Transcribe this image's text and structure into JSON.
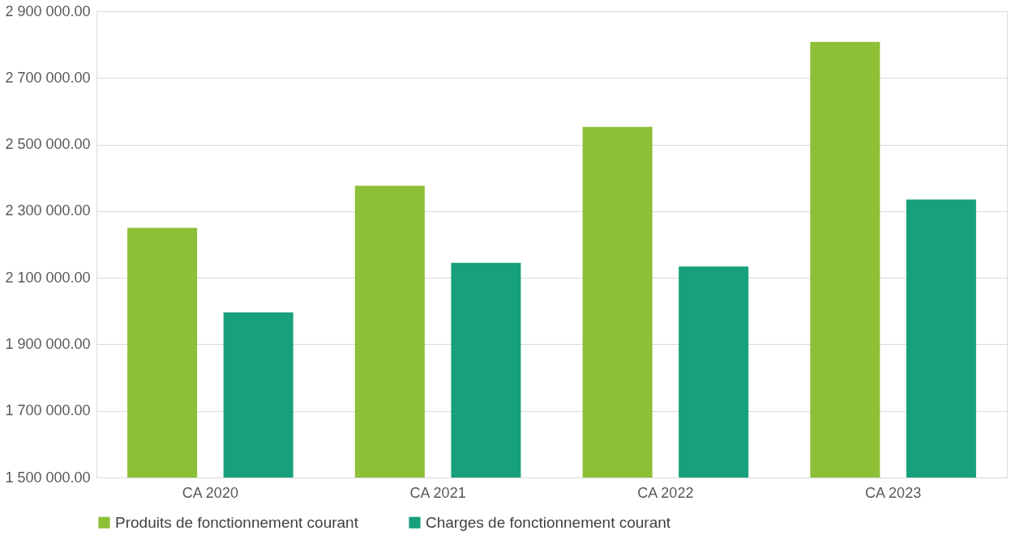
{
  "chart_data": {
    "type": "bar",
    "categories": [
      "CA 2020",
      "CA 2021",
      "CA 2022",
      "CA 2023"
    ],
    "series": [
      {
        "name": "Produits de fonctionnement courant",
        "color": "#8dbf37",
        "values": [
          2250000,
          2376000,
          2553000,
          2808000
        ]
      },
      {
        "name": "Charges de fonctionnement courant",
        "color": "#16a07c",
        "values": [
          1996000,
          2145000,
          2134000,
          2335000
        ]
      }
    ],
    "ylim": [
      1500000,
      2900000
    ],
    "yticks": [
      {
        "value": 1500000,
        "label": "1 500 000.00"
      },
      {
        "value": 1700000,
        "label": "1 700 000.00"
      },
      {
        "value": 1900000,
        "label": "1 900 000.00"
      },
      {
        "value": 2100000,
        "label": "2 100 000.00"
      },
      {
        "value": 2300000,
        "label": "2 300 000.00"
      },
      {
        "value": 2500000,
        "label": "2 500 000.00"
      },
      {
        "value": 2700000,
        "label": "2 700 000.00"
      },
      {
        "value": 2900000,
        "label": "2 900 000.00"
      }
    ],
    "grid": "y",
    "legend": "bottom"
  }
}
